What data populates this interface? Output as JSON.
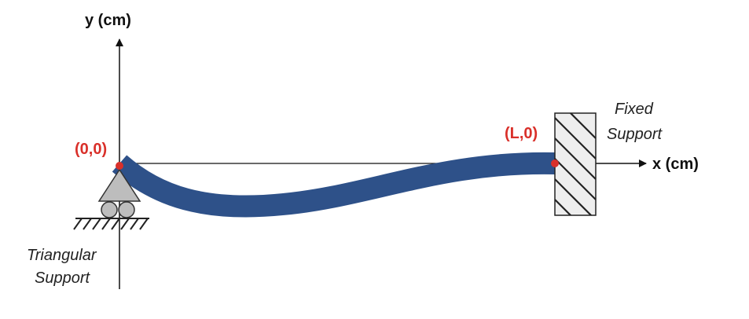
{
  "axes": {
    "y_label": "y (cm)",
    "x_label": "x (cm)"
  },
  "points": {
    "origin_label": "(0,0)",
    "end_label": "(L,0)"
  },
  "supports": {
    "left_line1": "Triangular",
    "left_line2": "Support",
    "right_line1": "Fixed",
    "right_line2": "Support"
  },
  "colors": {
    "beam": "#2e5189",
    "point": "#d9302a",
    "axis": "#111111",
    "support_fill": "#bdbdbd",
    "wall_fill": "#eeeeee"
  }
}
